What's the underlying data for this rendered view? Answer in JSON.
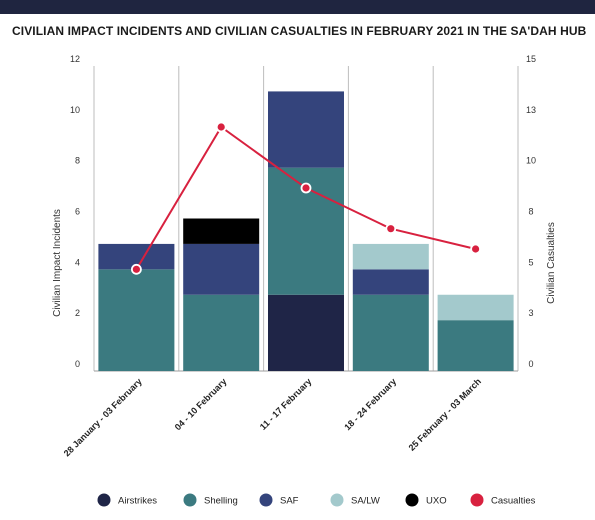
{
  "chart_data": {
    "type": "bar",
    "stacked": true,
    "title": "CIVILIAN IMPACT INCIDENTS AND CIVILIAN CASUALTIES IN FEBRUARY 2021 IN THE SA'DAH HUB",
    "categories": [
      "28 January - 03 February",
      "04 - 10 February",
      "11 - 17 February",
      "18 - 24 February",
      "25 February - 03 March"
    ],
    "ylabel": "Civilian Impact Incidents",
    "y2label": "Civilian Casualties",
    "ylim": [
      0,
      12
    ],
    "y2lim": [
      0,
      15
    ],
    "yticks": [
      "0",
      "2",
      "4",
      "6",
      "8",
      "10",
      "12"
    ],
    "y2ticks": [
      "0",
      "3",
      "5",
      "8",
      "10",
      "13",
      "15"
    ],
    "grid": "vertical",
    "legend_position": "bottom",
    "series": [
      {
        "name": "Airstrikes",
        "color": "#1f2547",
        "values": [
          0,
          0,
          3,
          0,
          0
        ]
      },
      {
        "name": "Shelling",
        "color": "#3b7a80",
        "values": [
          4,
          3,
          5,
          3,
          2
        ]
      },
      {
        "name": "SAF",
        "color": "#34447c",
        "values": [
          1,
          2,
          3,
          1,
          0
        ]
      },
      {
        "name": "SA/LW",
        "color": "#a3c9cc",
        "values": [
          0,
          0,
          0,
          1,
          1
        ]
      },
      {
        "name": "UXO",
        "color": "#000000",
        "values": [
          0,
          1,
          0,
          0,
          0
        ]
      }
    ],
    "line": {
      "name": "Casualties",
      "color": "#d8213f",
      "axis": "right",
      "values": [
        5,
        12,
        9,
        7,
        6
      ]
    }
  }
}
